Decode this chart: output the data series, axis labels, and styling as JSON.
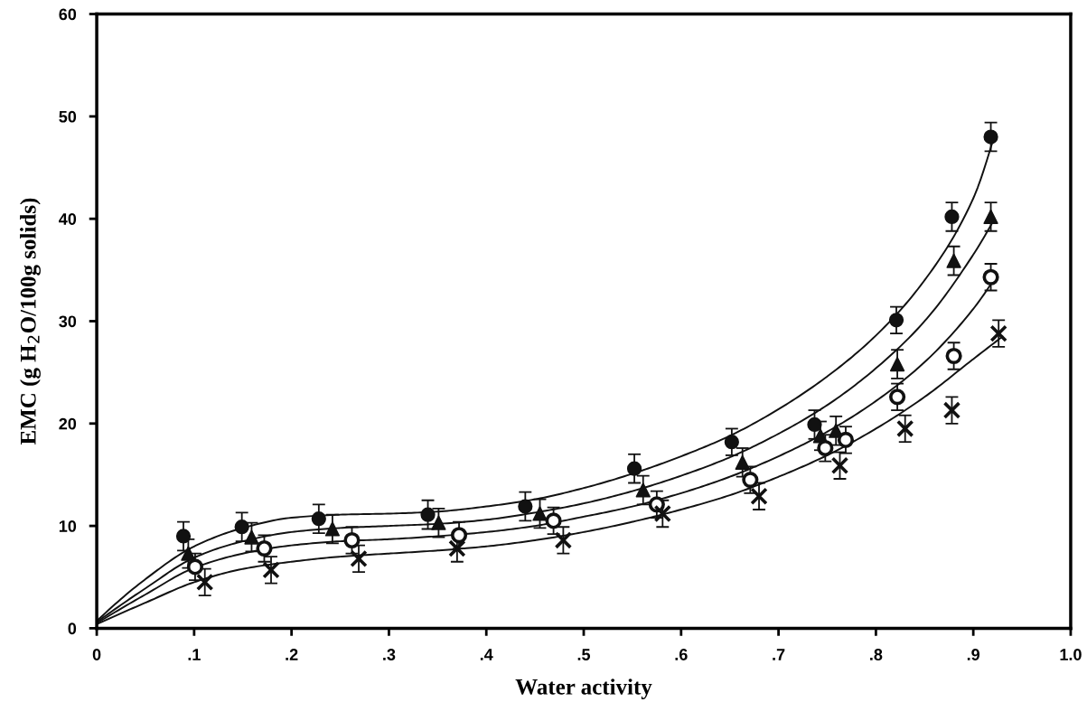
{
  "chart_data": {
    "type": "scatter",
    "xlabel": "Water activity",
    "ylabel": "EMC (g H$_{2}$O/100g solids)",
    "xlim": [
      0,
      1.0
    ],
    "ylim": [
      0,
      60
    ],
    "xticks": [
      0,
      {
        "value": 0.1,
        "label": ".1"
      },
      {
        "value": 0.2,
        "label": ".2"
      },
      {
        "value": 0.3,
        "label": ".3"
      },
      {
        "value": 0.4,
        "label": ".4"
      },
      {
        "value": 0.5,
        "label": ".5"
      },
      {
        "value": 0.6,
        "label": ".6"
      },
      {
        "value": 0.7,
        "label": ".7"
      },
      {
        "value": 0.8,
        "label": ".8"
      },
      {
        "value": 0.9,
        "label": ".9"
      },
      {
        "value": 1.0,
        "label": "1.0"
      }
    ],
    "yticks": [
      0,
      10,
      20,
      30,
      40,
      50,
      60
    ],
    "grid": false,
    "series": [
      {
        "marker": "circle",
        "color": "#111111",
        "x": [
          0.089,
          0.149,
          0.228,
          0.34,
          0.44,
          0.552,
          0.652,
          0.737,
          0.821,
          0.878,
          0.918
        ],
        "values": [
          9.0,
          9.9,
          10.7,
          11.1,
          11.9,
          15.6,
          18.2,
          19.9,
          30.1,
          40.2,
          48.0
        ],
        "errors": [
          1.4,
          1.4,
          1.4,
          1.4,
          1.4,
          1.4,
          1.3,
          1.4,
          1.3,
          1.4,
          1.4
        ]
      },
      {
        "marker": "triangle",
        "color": "#111111",
        "x": [
          0.094,
          0.159,
          0.242,
          0.351,
          0.455,
          0.561,
          0.663,
          0.743,
          0.759,
          0.822,
          0.88,
          0.918
        ],
        "values": [
          7.3,
          8.9,
          9.7,
          10.3,
          11.2,
          13.5,
          16.2,
          18.8,
          19.3,
          25.8,
          35.9,
          40.2
        ],
        "errors": [
          1.4,
          1.4,
          1.4,
          1.4,
          1.4,
          1.4,
          1.4,
          1.4,
          1.4,
          1.4,
          1.4,
          1.4
        ]
      },
      {
        "marker": "circle",
        "color": "#111111",
        "x": [
          0.101,
          0.172,
          0.262,
          0.372,
          0.469,
          0.575,
          0.671,
          0.748,
          0.769,
          0.822,
          0.88,
          0.918
        ],
        "values": [
          6.0,
          7.8,
          8.6,
          9.1,
          10.5,
          12.1,
          14.5,
          17.6,
          18.4,
          22.6,
          26.6,
          34.3
        ],
        "errors": [
          1.3,
          1.3,
          1.3,
          1.3,
          1.3,
          1.3,
          1.3,
          1.3,
          1.3,
          1.3,
          1.3,
          1.3
        ]
      },
      {
        "marker": "cross",
        "color": "#111111",
        "x": [
          0.111,
          0.179,
          0.269,
          0.37,
          0.479,
          0.581,
          0.68,
          0.763,
          0.83,
          0.878,
          0.926
        ],
        "values": [
          4.5,
          5.7,
          6.8,
          7.8,
          8.6,
          11.2,
          12.9,
          15.9,
          19.5,
          21.3,
          28.8
        ],
        "errors": [
          1.3,
          1.3,
          1.3,
          1.3,
          1.3,
          1.3,
          1.3,
          1.3,
          1.3,
          1.3,
          1.3
        ]
      },
      {
        "type": "line",
        "marker": "none",
        "color": "#111111",
        "x": [
          0,
          0.05,
          0.1,
          0.15,
          0.2,
          0.25,
          0.3,
          0.35,
          0.4,
          0.45,
          0.5,
          0.55,
          0.6,
          0.65,
          0.7,
          0.75,
          0.8,
          0.85,
          0.9,
          0.92
        ],
        "values": [
          0.7,
          4.8,
          8.0,
          9.8,
          10.8,
          11.1,
          11.2,
          11.4,
          11.9,
          12.6,
          13.7,
          15.1,
          16.8,
          18.8,
          21.4,
          24.6,
          28.6,
          34.0,
          42.0,
          47.6
        ]
      },
      {
        "type": "line",
        "marker": "none",
        "color": "#111111",
        "x": [
          0,
          0.05,
          0.1,
          0.15,
          0.2,
          0.25,
          0.3,
          0.35,
          0.4,
          0.45,
          0.5,
          0.55,
          0.6,
          0.65,
          0.7,
          0.75,
          0.8,
          0.85,
          0.9,
          0.92
        ],
        "values": [
          0.6,
          3.9,
          6.9,
          8.5,
          9.4,
          9.8,
          10.0,
          10.2,
          10.6,
          11.3,
          12.2,
          13.4,
          14.9,
          16.7,
          19.0,
          21.8,
          25.4,
          30.0,
          36.5,
          39.7
        ]
      },
      {
        "type": "line",
        "marker": "none",
        "color": "#111111",
        "x": [
          0,
          0.05,
          0.1,
          0.15,
          0.2,
          0.25,
          0.3,
          0.35,
          0.4,
          0.45,
          0.5,
          0.55,
          0.6,
          0.65,
          0.7,
          0.75,
          0.8,
          0.85,
          0.9,
          0.92
        ],
        "values": [
          0.5,
          3.3,
          5.9,
          7.3,
          8.1,
          8.5,
          8.7,
          9.0,
          9.4,
          10.0,
          10.9,
          11.9,
          13.2,
          14.8,
          16.8,
          19.2,
          22.2,
          26.0,
          31.2,
          33.9
        ]
      },
      {
        "type": "line",
        "marker": "none",
        "color": "#111111",
        "x": [
          0,
          0.05,
          0.1,
          0.15,
          0.2,
          0.25,
          0.3,
          0.35,
          0.4,
          0.45,
          0.5,
          0.55,
          0.6,
          0.65,
          0.7,
          0.75,
          0.8,
          0.85,
          0.9,
          0.93
        ],
        "values": [
          0.4,
          2.5,
          4.5,
          5.8,
          6.5,
          7.0,
          7.3,
          7.6,
          8.0,
          8.6,
          9.4,
          10.4,
          11.6,
          13.0,
          14.8,
          16.9,
          19.5,
          22.6,
          26.3,
          28.5
        ]
      }
    ]
  }
}
